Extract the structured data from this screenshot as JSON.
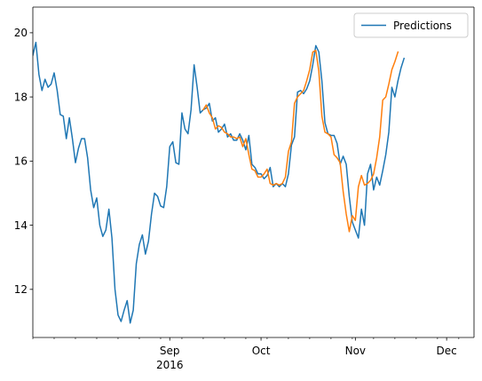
{
  "chart_data": {
    "type": "line",
    "title": "",
    "xlabel": "",
    "ylabel": "",
    "legend_position": "top-right",
    "xlim": [
      "2016-07-18",
      "2016-12-10"
    ],
    "ylim": [
      10.5,
      20.8
    ],
    "yticks": [
      12,
      14,
      16,
      18,
      20
    ],
    "xticks_major": [
      {
        "date": "2016-09-01",
        "label": "Sep",
        "sublabel": "2016"
      },
      {
        "date": "2016-10-01",
        "label": "Oct",
        "sublabel": ""
      },
      {
        "date": "2016-11-01",
        "label": "Nov",
        "sublabel": ""
      },
      {
        "date": "2016-12-01",
        "label": "Dec",
        "sublabel": ""
      }
    ],
    "xticks_minor": [
      "2016-07-18",
      "2016-07-25",
      "2016-08-01",
      "2016-08-08",
      "2016-08-15",
      "2016-08-22",
      "2016-08-29",
      "2016-09-05",
      "2016-09-12",
      "2016-09-19",
      "2016-09-26",
      "2016-10-03",
      "2016-10-10",
      "2016-10-17",
      "2016-10-24",
      "2016-10-31",
      "2016-11-07",
      "2016-11-14",
      "2016-11-21",
      "2016-11-28",
      "2016-12-05"
    ],
    "series": [
      {
        "name": "Predictions",
        "color": "#1f77b4",
        "points": [
          [
            "2016-07-18",
            19.3
          ],
          [
            "2016-07-19",
            19.7
          ],
          [
            "2016-07-20",
            18.7
          ],
          [
            "2016-07-21",
            18.2
          ],
          [
            "2016-07-22",
            18.55
          ],
          [
            "2016-07-23",
            18.3
          ],
          [
            "2016-07-24",
            18.4
          ],
          [
            "2016-07-25",
            18.75
          ],
          [
            "2016-07-26",
            18.2
          ],
          [
            "2016-07-27",
            17.45
          ],
          [
            "2016-07-28",
            17.4
          ],
          [
            "2016-07-29",
            16.7
          ],
          [
            "2016-07-30",
            17.35
          ],
          [
            "2016-07-31",
            16.7
          ],
          [
            "2016-08-01",
            15.95
          ],
          [
            "2016-08-02",
            16.4
          ],
          [
            "2016-08-03",
            16.7
          ],
          [
            "2016-08-04",
            16.7
          ],
          [
            "2016-08-05",
            16.1
          ],
          [
            "2016-08-06",
            15.1
          ],
          [
            "2016-08-07",
            14.55
          ],
          [
            "2016-08-08",
            14.85
          ],
          [
            "2016-08-09",
            14.0
          ],
          [
            "2016-08-10",
            13.65
          ],
          [
            "2016-08-11",
            13.85
          ],
          [
            "2016-08-12",
            14.5
          ],
          [
            "2016-08-13",
            13.6
          ],
          [
            "2016-08-14",
            12.0
          ],
          [
            "2016-08-15",
            11.2
          ],
          [
            "2016-08-16",
            11.0
          ],
          [
            "2016-08-17",
            11.35
          ],
          [
            "2016-08-18",
            11.65
          ],
          [
            "2016-08-19",
            10.95
          ],
          [
            "2016-08-20",
            11.35
          ],
          [
            "2016-08-21",
            12.8
          ],
          [
            "2016-08-22",
            13.4
          ],
          [
            "2016-08-23",
            13.7
          ],
          [
            "2016-08-24",
            13.1
          ],
          [
            "2016-08-25",
            13.5
          ],
          [
            "2016-08-26",
            14.35
          ],
          [
            "2016-08-27",
            15.0
          ],
          [
            "2016-08-28",
            14.9
          ],
          [
            "2016-08-29",
            14.6
          ],
          [
            "2016-08-30",
            14.55
          ],
          [
            "2016-08-31",
            15.2
          ],
          [
            "2016-09-01",
            16.45
          ],
          [
            "2016-09-02",
            16.6
          ],
          [
            "2016-09-03",
            15.95
          ],
          [
            "2016-09-04",
            15.9
          ],
          [
            "2016-09-05",
            17.5
          ],
          [
            "2016-09-06",
            17.0
          ],
          [
            "2016-09-07",
            16.85
          ],
          [
            "2016-09-08",
            17.6
          ],
          [
            "2016-09-09",
            19.0
          ],
          [
            "2016-09-10",
            18.3
          ],
          [
            "2016-09-11",
            17.5
          ],
          [
            "2016-09-12",
            17.6
          ],
          [
            "2016-09-13",
            17.65
          ],
          [
            "2016-09-14",
            17.8
          ],
          [
            "2016-09-15",
            17.25
          ],
          [
            "2016-09-16",
            17.35
          ],
          [
            "2016-09-17",
            16.9
          ],
          [
            "2016-09-18",
            17.0
          ],
          [
            "2016-09-19",
            17.15
          ],
          [
            "2016-09-20",
            16.75
          ],
          [
            "2016-09-21",
            16.85
          ],
          [
            "2016-09-22",
            16.65
          ],
          [
            "2016-09-23",
            16.65
          ],
          [
            "2016-09-24",
            16.85
          ],
          [
            "2016-09-25",
            16.65
          ],
          [
            "2016-09-26",
            16.35
          ],
          [
            "2016-09-27",
            16.8
          ],
          [
            "2016-09-28",
            15.9
          ],
          [
            "2016-09-29",
            15.8
          ],
          [
            "2016-09-30",
            15.6
          ],
          [
            "2016-10-01",
            15.6
          ],
          [
            "2016-10-02",
            15.45
          ],
          [
            "2016-10-03",
            15.55
          ],
          [
            "2016-10-04",
            15.8
          ],
          [
            "2016-10-05",
            15.2
          ],
          [
            "2016-10-06",
            15.3
          ],
          [
            "2016-10-07",
            15.2
          ],
          [
            "2016-10-08",
            15.3
          ],
          [
            "2016-10-09",
            15.2
          ],
          [
            "2016-10-10",
            15.6
          ],
          [
            "2016-10-11",
            16.5
          ],
          [
            "2016-10-12",
            16.75
          ],
          [
            "2016-10-13",
            18.15
          ],
          [
            "2016-10-14",
            18.2
          ],
          [
            "2016-10-15",
            18.1
          ],
          [
            "2016-10-16",
            18.25
          ],
          [
            "2016-10-17",
            18.5
          ],
          [
            "2016-10-18",
            19.0
          ],
          [
            "2016-10-19",
            19.6
          ],
          [
            "2016-10-20",
            19.4
          ],
          [
            "2016-10-21",
            18.5
          ],
          [
            "2016-10-22",
            17.2
          ],
          [
            "2016-10-23",
            16.85
          ],
          [
            "2016-10-24",
            16.8
          ],
          [
            "2016-10-25",
            16.8
          ],
          [
            "2016-10-26",
            16.55
          ],
          [
            "2016-10-27",
            15.9
          ],
          [
            "2016-10-28",
            16.15
          ],
          [
            "2016-10-29",
            15.9
          ],
          [
            "2016-10-30",
            14.9
          ],
          [
            "2016-10-31",
            14.1
          ],
          [
            "2016-11-01",
            13.85
          ],
          [
            "2016-11-02",
            13.6
          ],
          [
            "2016-11-03",
            14.5
          ],
          [
            "2016-11-04",
            14.0
          ],
          [
            "2016-11-05",
            15.6
          ],
          [
            "2016-11-06",
            15.9
          ],
          [
            "2016-11-07",
            15.1
          ],
          [
            "2016-11-08",
            15.5
          ],
          [
            "2016-11-09",
            15.25
          ],
          [
            "2016-11-10",
            15.7
          ],
          [
            "2016-11-11",
            16.2
          ],
          [
            "2016-11-12",
            16.9
          ],
          [
            "2016-11-13",
            18.3
          ],
          [
            "2016-11-14",
            18.0
          ],
          [
            "2016-11-15",
            18.5
          ],
          [
            "2016-11-16",
            18.9
          ],
          [
            "2016-11-17",
            19.2
          ]
        ]
      },
      {
        "name": "",
        "color": "#ff7f0e",
        "points": [
          [
            "2016-09-12",
            17.6
          ],
          [
            "2016-09-13",
            17.75
          ],
          [
            "2016-09-14",
            17.5
          ],
          [
            "2016-09-15",
            17.35
          ],
          [
            "2016-09-16",
            17.0
          ],
          [
            "2016-09-17",
            17.1
          ],
          [
            "2016-09-18",
            17.05
          ],
          [
            "2016-09-19",
            16.9
          ],
          [
            "2016-09-20",
            16.85
          ],
          [
            "2016-09-21",
            16.75
          ],
          [
            "2016-09-22",
            16.75
          ],
          [
            "2016-09-23",
            16.7
          ],
          [
            "2016-09-24",
            16.75
          ],
          [
            "2016-09-25",
            16.45
          ],
          [
            "2016-09-26",
            16.7
          ],
          [
            "2016-09-27",
            16.2
          ],
          [
            "2016-09-28",
            15.75
          ],
          [
            "2016-09-29",
            15.7
          ],
          [
            "2016-09-30",
            15.5
          ],
          [
            "2016-10-01",
            15.5
          ],
          [
            "2016-10-02",
            15.6
          ],
          [
            "2016-10-03",
            15.75
          ],
          [
            "2016-10-04",
            15.3
          ],
          [
            "2016-10-05",
            15.25
          ],
          [
            "2016-10-06",
            15.3
          ],
          [
            "2016-10-07",
            15.25
          ],
          [
            "2016-10-08",
            15.3
          ],
          [
            "2016-10-09",
            15.5
          ],
          [
            "2016-10-10",
            16.3
          ],
          [
            "2016-10-11",
            16.6
          ],
          [
            "2016-10-12",
            17.8
          ],
          [
            "2016-10-13",
            18.0
          ],
          [
            "2016-10-14",
            18.1
          ],
          [
            "2016-10-15",
            18.2
          ],
          [
            "2016-10-16",
            18.5
          ],
          [
            "2016-10-17",
            18.85
          ],
          [
            "2016-10-18",
            19.4
          ],
          [
            "2016-10-19",
            19.45
          ],
          [
            "2016-10-20",
            18.8
          ],
          [
            "2016-10-21",
            17.4
          ],
          [
            "2016-10-22",
            16.9
          ],
          [
            "2016-10-23",
            16.85
          ],
          [
            "2016-10-24",
            16.75
          ],
          [
            "2016-10-25",
            16.2
          ],
          [
            "2016-10-26",
            16.1
          ],
          [
            "2016-10-27",
            15.95
          ],
          [
            "2016-10-28",
            15.05
          ],
          [
            "2016-10-29",
            14.35
          ],
          [
            "2016-10-30",
            13.8
          ],
          [
            "2016-10-31",
            14.3
          ],
          [
            "2016-11-01",
            14.15
          ],
          [
            "2016-11-02",
            15.2
          ],
          [
            "2016-11-03",
            15.55
          ],
          [
            "2016-11-04",
            15.25
          ],
          [
            "2016-11-05",
            15.3
          ],
          [
            "2016-11-06",
            15.4
          ],
          [
            "2016-11-07",
            15.6
          ],
          [
            "2016-11-08",
            16.1
          ],
          [
            "2016-11-09",
            16.75
          ],
          [
            "2016-11-10",
            17.9
          ],
          [
            "2016-11-11",
            18.0
          ],
          [
            "2016-11-12",
            18.4
          ],
          [
            "2016-11-13",
            18.85
          ],
          [
            "2016-11-14",
            19.1
          ],
          [
            "2016-11-15",
            19.4
          ]
        ]
      }
    ]
  }
}
